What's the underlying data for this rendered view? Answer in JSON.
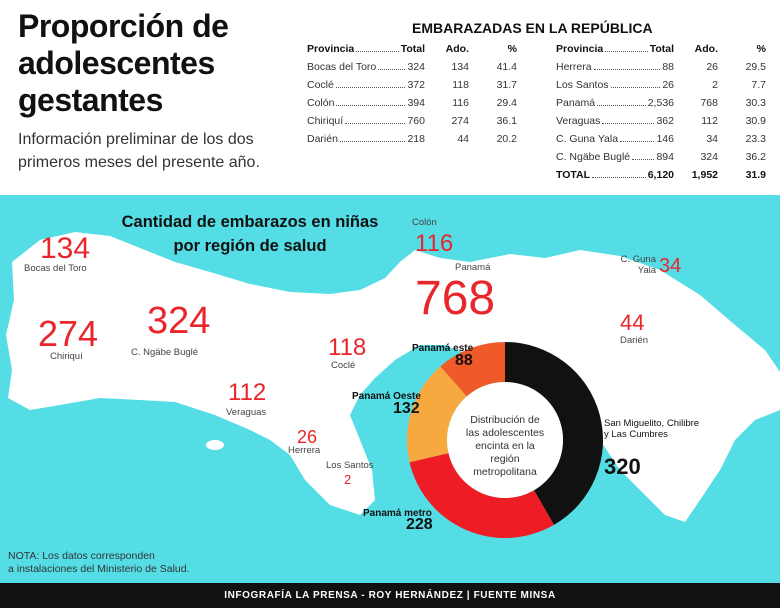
{
  "header": {
    "title_lines": [
      "Proporción de",
      "adolescentes",
      "gestantes"
    ],
    "subtitle_lines": [
      "Información preliminar de los dos",
      "primeros meses del presente año."
    ]
  },
  "table": {
    "title": "EMBARAZADAS EN LA REPÚBLICA",
    "columns": [
      "Provincia",
      "Total",
      "Ado.",
      "%"
    ],
    "left_rows": [
      [
        "Bocas del Toro",
        "324",
        "134",
        "41.4"
      ],
      [
        "Coclé",
        "372",
        "118",
        "31.7"
      ],
      [
        "Colón",
        "394",
        "116",
        "29.4"
      ],
      [
        "Chiriquí",
        "760",
        "274",
        "36.1"
      ],
      [
        "Darién",
        "218",
        "44",
        "20.2"
      ]
    ],
    "right_rows": [
      [
        "Herrera",
        "88",
        "26",
        "29.5"
      ],
      [
        "Los Santos",
        "26",
        "2",
        "7.7"
      ],
      [
        "Panamá",
        "2,536",
        "768",
        "30.3"
      ],
      [
        "Veraguas",
        "362",
        "112",
        "30.9"
      ],
      [
        "C. Guna Yala",
        "146",
        "34",
        "23.3"
      ],
      [
        "C. Ngäbe Buglé",
        "894",
        "324",
        "36.2"
      ],
      [
        "TOTAL",
        "6,120",
        "1,952",
        "31.9"
      ]
    ]
  },
  "map": {
    "title_lines": [
      "Cantidad de embarazos en niñas",
      "por región de salud"
    ],
    "regions": [
      {
        "name": "Bocas del Toro",
        "value": 134
      },
      {
        "name": "Chiriquí",
        "value": 274
      },
      {
        "name": "C. Ngäbe Buglé",
        "value": 324
      },
      {
        "name": "Veraguas",
        "value": 112
      },
      {
        "name": "Herrera",
        "value": 26
      },
      {
        "name": "Los Santos",
        "value": 2
      },
      {
        "name": "Coclé",
        "value": 118
      },
      {
        "name": "Colón",
        "value": 116
      },
      {
        "name": "Panamá",
        "value": 768
      },
      {
        "name": "C. Guna Yala",
        "value": 34
      },
      {
        "name": "Darién",
        "value": 44
      }
    ]
  },
  "donut": {
    "type": "pie",
    "center_lines": [
      "Distribución de",
      "las adolescentes",
      "encinta en la",
      "región",
      "metropolitana"
    ],
    "segments": [
      {
        "name": "San Miguelito, Chilibre y Las Cumbres",
        "value": 320,
        "color": "#111111"
      },
      {
        "name": "Panamá metro",
        "value": 228,
        "color": "#ee1c24"
      },
      {
        "name": "Panamá Oeste",
        "value": 132,
        "color": "#f7a940"
      },
      {
        "name": "Panamá este",
        "value": 88,
        "color": "#f05a28"
      }
    ]
  },
  "note_lines": [
    "NOTA: Los datos corresponden",
    "a instalaciones del Ministerio de Salud."
  ],
  "footer": "INFOGRAFÍA LA PRENSA - ROY HERNÁNDEZ | FUENTE MINSA"
}
